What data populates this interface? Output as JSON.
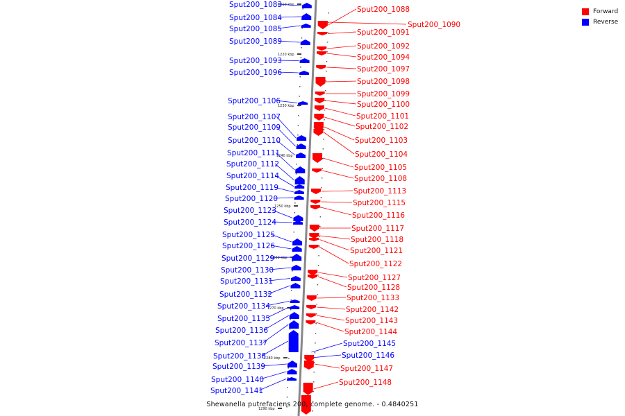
{
  "colors": {
    "forward": "#ff0000",
    "reverse": "#0000ff",
    "backbone": "#888888"
  },
  "legend": [
    {
      "label": "Forward",
      "color": "#ff0000"
    },
    {
      "label": "Reverse",
      "color": "#0000ff"
    }
  ],
  "caption": "Shewanella putrefaciens 200, complete genome. - 0.4840251",
  "ticks": [
    "1210 kbp",
    "1220 kbp",
    "1230 kbp",
    "1240 kbp",
    "1250 kbp",
    "1260 kbp",
    "1270 kbp",
    "1280 kbp",
    "1290 kbp"
  ],
  "reverse_genes": [
    "Sput200_1083",
    "Sput200_1084",
    "Sput200_1085",
    "Sput200_1089",
    "Sput200_1093",
    "Sput200_1096",
    "Sput200_1106",
    "Sput200_1107",
    "Sput200_1109",
    "Sput200_1110",
    "Sput200_1111",
    "Sput200_1112",
    "Sput200_1114",
    "Sput200_1119",
    "Sput200_1120",
    "Sput200_1123",
    "Sput200_1124",
    "Sput200_1125",
    "Sput200_1126",
    "Sput200_1129",
    "Sput200_1130",
    "Sput200_1131",
    "Sput200_1132",
    "Sput200_1134",
    "Sput200_1135",
    "Sput200_1136",
    "Sput200_1137",
    "Sput200_1138",
    "Sput200_1139",
    "Sput200_1140",
    "Sput200_1141"
  ],
  "forward_genes": [
    "Sput200_1088",
    "Sput200_1090",
    "Sput200_1091",
    "Sput200_1092",
    "Sput200_1094",
    "Sput200_1097",
    "Sput200_1098",
    "Sput200_1099",
    "Sput200_1100",
    "Sput200_1101",
    "Sput200_1102",
    "Sput200_1103",
    "Sput200_1104",
    "Sput200_1105",
    "Sput200_1108",
    "Sput200_1113",
    "Sput200_1115",
    "Sput200_1116",
    "Sput200_1117",
    "Sput200_1118",
    "Sput200_1121",
    "Sput200_1122",
    "Sput200_1127",
    "Sput200_1128",
    "Sput200_1133",
    "Sput200_1142",
    "Sput200_1143",
    "Sput200_1144",
    "Sput200_1147",
    "Sput200_1148"
  ],
  "blue_right_genes": [
    "Sput200_1145",
    "Sput200_1146"
  ]
}
